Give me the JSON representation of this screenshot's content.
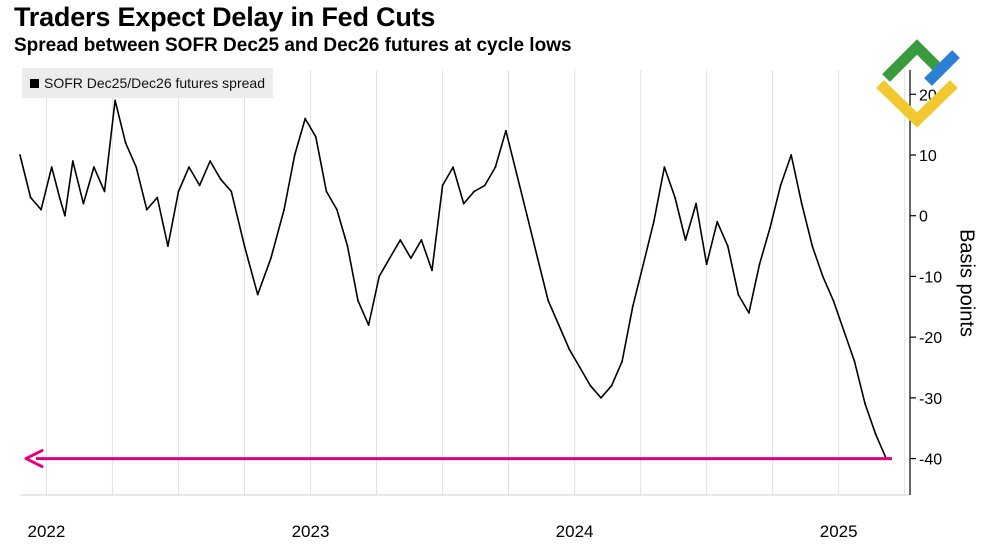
{
  "chart_data": {
    "type": "line",
    "title": "Traders Expect Delay in Fed Cuts",
    "subtitle": "Spread between SOFR Dec25 and Dec26 futures at cycle lows",
    "legend": [
      "SOFR Dec25/Dec26 futures spread"
    ],
    "ylabel": "Basis points",
    "xlabel": "",
    "ylim": [
      -46,
      24
    ],
    "xlim": [
      2021.9,
      2025.27
    ],
    "yticks": [
      -40,
      -30,
      -20,
      -10,
      0,
      10,
      20
    ],
    "ytick_labels": [
      "-40",
      "-30",
      "-20",
      "-10",
      "0",
      "10",
      "20"
    ],
    "xtick_labels": [
      "2022",
      "2023",
      "2024",
      "2025"
    ],
    "xtick_positions": [
      2022.0,
      2023.0,
      2024.0,
      2025.0
    ],
    "grid": "vertical",
    "series": [
      {
        "name": "SOFR Dec25/Dec26 futures spread",
        "color": "#000000",
        "x": [
          2021.9,
          2021.94,
          2021.98,
          2022.02,
          2022.05,
          2022.07,
          2022.1,
          2022.14,
          2022.18,
          2022.22,
          2022.26,
          2022.3,
          2022.34,
          2022.38,
          2022.42,
          2022.46,
          2022.5,
          2022.54,
          2022.58,
          2022.62,
          2022.66,
          2022.7,
          2022.75,
          2022.8,
          2022.85,
          2022.9,
          2022.94,
          2022.98,
          2023.02,
          2023.06,
          2023.1,
          2023.14,
          2023.18,
          2023.22,
          2023.26,
          2023.3,
          2023.34,
          2023.38,
          2023.42,
          2023.46,
          2023.5,
          2023.54,
          2023.58,
          2023.62,
          2023.66,
          2023.7,
          2023.74,
          2023.78,
          2023.82,
          2023.86,
          2023.9,
          2023.94,
          2023.98,
          2024.02,
          2024.06,
          2024.1,
          2024.14,
          2024.18,
          2024.22,
          2024.26,
          2024.3,
          2024.34,
          2024.38,
          2024.42,
          2024.46,
          2024.5,
          2024.54,
          2024.58,
          2024.62,
          2024.66,
          2024.7,
          2024.74,
          2024.78,
          2024.82,
          2024.86,
          2024.9,
          2024.94,
          2024.98,
          2025.02,
          2025.06,
          2025.1,
          2025.14,
          2025.18
        ],
        "values": [
          10,
          3,
          1,
          8,
          3,
          0,
          9,
          2,
          8,
          4,
          19,
          12,
          8,
          1,
          3,
          -5,
          4,
          8,
          5,
          9,
          6,
          4,
          -5,
          -13,
          -7,
          1,
          10,
          16,
          13,
          4,
          1,
          -5,
          -14,
          -18,
          -10,
          -7,
          -4,
          -7,
          -4,
          -9,
          5,
          8,
          2,
          4,
          5,
          8,
          14,
          7,
          0,
          -7,
          -14,
          -18,
          -22,
          -25,
          -28,
          -30,
          -28,
          -24,
          -15,
          -8,
          -1,
          8,
          3,
          -4,
          2,
          -8,
          -1,
          -5,
          -13,
          -16,
          -8,
          -2,
          5,
          10,
          2,
          -5,
          -10,
          -14,
          -19,
          -24,
          -31,
          -36,
          -40
        ]
      }
    ],
    "annotations": [
      {
        "type": "horizontal-arrow",
        "y": -40,
        "direction": "left",
        "color": "#e4007c"
      }
    ]
  },
  "logo": {
    "name": "brand-logo",
    "colors": [
      "#3a9a3e",
      "#2b7fd4",
      "#f2c830"
    ]
  }
}
